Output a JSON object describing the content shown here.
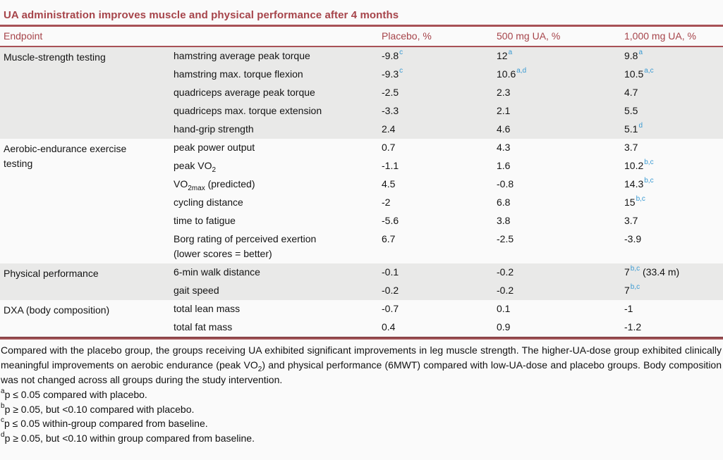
{
  "title": "UA administration improves muscle and physical performance after 4 months",
  "colors": {
    "accent_red": "#a6444a",
    "rule_red": "#a85156",
    "superscript_blue": "#3a9ad2",
    "shaded_band": "#e9e9e8",
    "background": "#fafafa"
  },
  "header": {
    "endpoint_label": "Endpoint",
    "columns": [
      "Placebo, %",
      "500 mg UA, %",
      "1,000 mg UA, %"
    ]
  },
  "sections": [
    {
      "group": "Muscle-strength testing",
      "shaded": true,
      "rows": [
        {
          "endpoint": [
            {
              "s": "hamstring average peak torque"
            }
          ],
          "values": [
            {
              "v": "-9.8",
              "sup": "c"
            },
            {
              "v": "12",
              "sup": "a"
            },
            {
              "v": "9.8",
              "sup": "a"
            }
          ]
        },
        {
          "endpoint": [
            {
              "s": "hamstring max. torque flexion"
            }
          ],
          "values": [
            {
              "v": "-9.3",
              "sup": "c"
            },
            {
              "v": "10.6",
              "sup": "a,d"
            },
            {
              "v": "10.5",
              "sup": "a,c"
            }
          ]
        },
        {
          "endpoint": [
            {
              "s": "quadriceps average peak torque"
            }
          ],
          "values": [
            {
              "v": "-2.5"
            },
            {
              "v": "2.3"
            },
            {
              "v": "4.7"
            }
          ]
        },
        {
          "endpoint": [
            {
              "s": "quadriceps max. torque extension"
            }
          ],
          "values": [
            {
              "v": "-3.3"
            },
            {
              "v": "2.1"
            },
            {
              "v": "5.5"
            }
          ]
        },
        {
          "endpoint": [
            {
              "s": "hand-grip strength"
            }
          ],
          "values": [
            {
              "v": "2.4"
            },
            {
              "v": "4.6"
            },
            {
              "v": "5.1",
              "sup": "d"
            }
          ]
        }
      ]
    },
    {
      "group": "Aerobic-endurance exercise testing",
      "shaded": false,
      "rows": [
        {
          "endpoint": [
            {
              "s": "peak power output"
            }
          ],
          "values": [
            {
              "v": "0.7"
            },
            {
              "v": "4.3"
            },
            {
              "v": "3.7"
            }
          ]
        },
        {
          "endpoint": [
            {
              "s": "peak VO"
            },
            {
              "sub": "2"
            }
          ],
          "values": [
            {
              "v": "-1.1"
            },
            {
              "v": "1.6"
            },
            {
              "v": "10.2",
              "sup": "b,c"
            }
          ]
        },
        {
          "endpoint": [
            {
              "s": "VO"
            },
            {
              "sub": "2max"
            },
            {
              "s": " (predicted)"
            }
          ],
          "values": [
            {
              "v": "4.5"
            },
            {
              "v": "-0.8"
            },
            {
              "v": "14.3",
              "sup": "b,c"
            }
          ]
        },
        {
          "endpoint": [
            {
              "s": "cycling distance"
            }
          ],
          "values": [
            {
              "v": "-2"
            },
            {
              "v": "6.8"
            },
            {
              "v": "15",
              "sup": "b,c"
            }
          ]
        },
        {
          "endpoint": [
            {
              "s": "time to fatigue"
            }
          ],
          "values": [
            {
              "v": "-5.6"
            },
            {
              "v": "3.8"
            },
            {
              "v": "3.7"
            }
          ]
        },
        {
          "endpoint": [
            {
              "s": "Borg rating of perceived exertion (lower scores = better)"
            }
          ],
          "values": [
            {
              "v": "6.7"
            },
            {
              "v": "-2.5"
            },
            {
              "v": "-3.9"
            }
          ]
        }
      ]
    },
    {
      "group": "Physical performance",
      "shaded": true,
      "rows": [
        {
          "endpoint": [
            {
              "s": "6-min walk distance"
            }
          ],
          "values": [
            {
              "v": "-0.1"
            },
            {
              "v": "-0.2"
            },
            {
              "v": "7",
              "sup": "b,c",
              "after": " (33.4 m)"
            }
          ]
        },
        {
          "endpoint": [
            {
              "s": "gait speed"
            }
          ],
          "values": [
            {
              "v": "-0.2"
            },
            {
              "v": "-0.2"
            },
            {
              "v": "7",
              "sup": "b,c"
            }
          ]
        }
      ]
    },
    {
      "group": "DXA (body composition)",
      "shaded": false,
      "rows": [
        {
          "endpoint": [
            {
              "s": "total lean mass"
            }
          ],
          "values": [
            {
              "v": "-0.7"
            },
            {
              "v": "0.1"
            },
            {
              "v": "-1"
            }
          ]
        },
        {
          "endpoint": [
            {
              "s": "total fat mass"
            }
          ],
          "values": [
            {
              "v": "0.4"
            },
            {
              "v": "0.9"
            },
            {
              "v": "-1.2"
            }
          ]
        }
      ]
    }
  ],
  "caption_parts": [
    {
      "s": "Compared with the placebo group, the groups receiving UA exhibited significant improvements in leg muscle strength. The higher-UA-dose group exhibited clinically meaningful improvements on aerobic endurance (peak VO"
    },
    {
      "sub": "2"
    },
    {
      "s": ") and physical performance (6MWT) compared with low-UA-dose and placebo groups. Body composition was not changed across all groups during the study intervention."
    }
  ],
  "footnotes": [
    {
      "marker": "a",
      "text": "p ≤ 0.05 compared with placebo."
    },
    {
      "marker": "b",
      "text": "p ≥ 0.05, but <0.10 compared with placebo."
    },
    {
      "marker": "c",
      "text": "p ≤ 0.05 within-group compared from baseline."
    },
    {
      "marker": "d",
      "text": "p ≥ 0.05, but <0.10 within group compared from baseline."
    }
  ]
}
